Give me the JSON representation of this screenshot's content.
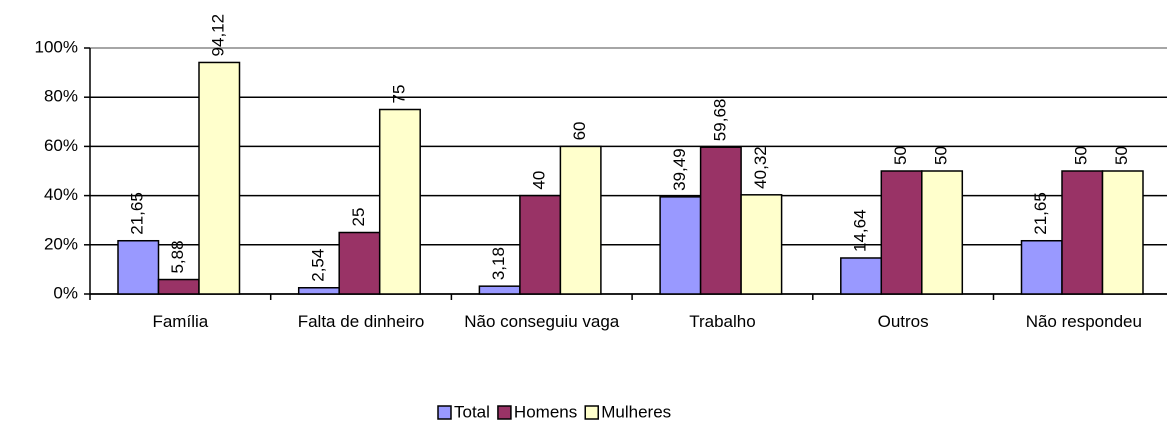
{
  "chart_data": {
    "type": "bar",
    "categories": [
      "Família",
      "Falta de dinheiro",
      "Não conseguiu vaga",
      "Trabalho",
      "Outros",
      "Não respondeu"
    ],
    "series": [
      {
        "name": "Total",
        "color": "#9999ff",
        "values": [
          21.65,
          2.54,
          3.18,
          39.49,
          14.64,
          21.65
        ],
        "value_labels": [
          "21,65",
          "2,54",
          "3,18",
          "39,49",
          "14,64",
          "21,65"
        ]
      },
      {
        "name": "Homens",
        "color": "#993366",
        "values": [
          5.88,
          25,
          40,
          59.68,
          50,
          50
        ],
        "value_labels": [
          "5,88",
          "25",
          "40",
          "59,68",
          "50",
          "50"
        ]
      },
      {
        "name": "Mulheres",
        "color": "#ffffcc",
        "values": [
          94.12,
          75,
          60,
          40.32,
          50,
          50
        ],
        "value_labels": [
          "94,12",
          "75",
          "60",
          "40,32",
          "50",
          "50"
        ]
      }
    ],
    "ylim": [
      0,
      100
    ],
    "yticks": [
      {
        "value": 0,
        "label": "0%"
      },
      {
        "value": 20,
        "label": "20%"
      },
      {
        "value": 40,
        "label": "40%"
      },
      {
        "value": 60,
        "label": "60%"
      },
      {
        "value": 80,
        "label": "80%"
      },
      {
        "value": 100,
        "label": "100%"
      }
    ],
    "grid": true,
    "legend": "bottom"
  }
}
